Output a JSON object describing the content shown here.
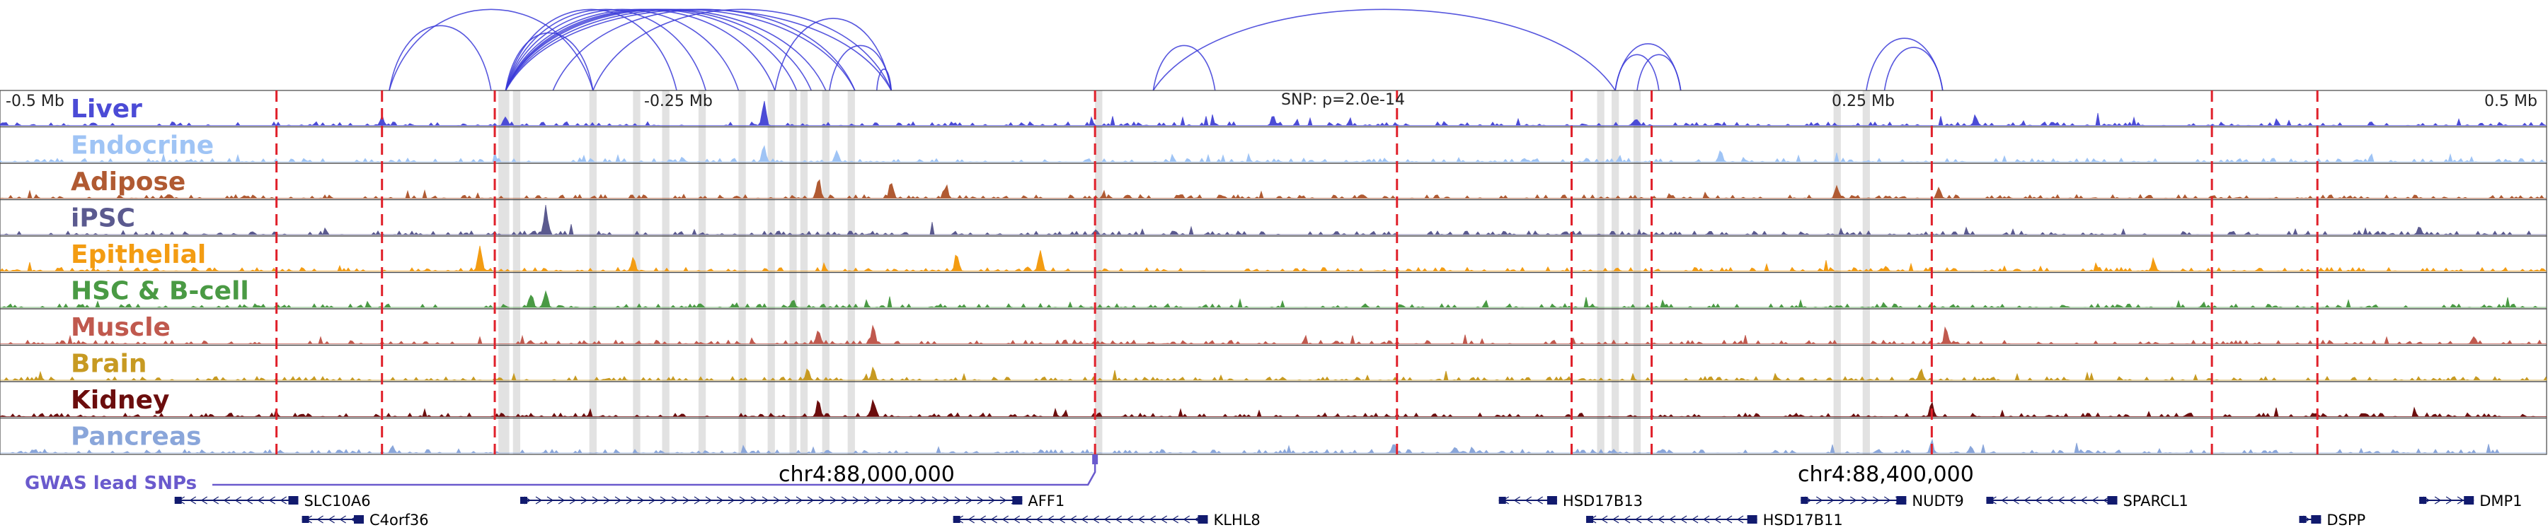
{
  "chart_data": {
    "type": "area",
    "title": "",
    "x_range": [
      87800000,
      88500000
    ],
    "ruler_labels": [
      "-0.5 Mb",
      "-0.25 Mb",
      "0.25 Mb",
      "0.5 Mb"
    ],
    "coordinate_labels": [
      "chr4:88,000,000",
      "chr4:88,400,000"
    ],
    "snp_annotation": "SNP: p=2.0e-14",
    "gwas_label": "GWAS lead SNPs",
    "tracks": [
      {
        "name": "Liver",
        "color": "#4b4bd6",
        "seed": 11,
        "peaks": [
          [
            87905000,
            0.35
          ],
          [
            87939000,
            0.4
          ],
          [
            88010000,
            0.9
          ],
          [
            88150000,
            0.35
          ],
          [
            88343000,
            0.4
          ],
          [
            88250000,
            0.3
          ]
        ]
      },
      {
        "name": "Endocrine",
        "color": "#9fc4f5",
        "seed": 23,
        "peaks": [
          [
            88010000,
            0.6
          ],
          [
            88030000,
            0.4
          ],
          [
            88273000,
            0.4
          ]
        ]
      },
      {
        "name": "Adipose",
        "color": "#b05a32",
        "seed": 37,
        "peaks": [
          [
            88025000,
            0.9
          ],
          [
            88045000,
            0.7
          ],
          [
            88060000,
            0.5
          ],
          [
            88305000,
            0.5
          ],
          [
            88333000,
            0.5
          ]
        ]
      },
      {
        "name": "iPSC",
        "color": "#5b5a8f",
        "seed": 41,
        "peaks": [
          [
            87950000,
            0.9
          ],
          [
            88465000,
            0.3
          ]
        ]
      },
      {
        "name": "Epithelial",
        "color": "#f39c12",
        "seed": 53,
        "peaks": [
          [
            87932000,
            1.0
          ],
          [
            87974000,
            0.6
          ],
          [
            88063000,
            0.8
          ],
          [
            88086000,
            0.8
          ],
          [
            88392000,
            0.45
          ]
        ]
      },
      {
        "name": "HSC & B-cell",
        "color": "#4a9a44",
        "seed": 61,
        "peaks": [
          [
            87950000,
            0.8
          ],
          [
            87946000,
            0.6
          ],
          [
            88018000,
            0.3
          ]
        ]
      },
      {
        "name": "Muscle",
        "color": "#c0594e",
        "seed": 71,
        "peaks": [
          [
            88025000,
            0.6
          ],
          [
            88040000,
            0.7
          ],
          [
            88335000,
            0.7
          ],
          [
            88480000,
            0.3
          ]
        ]
      },
      {
        "name": "Brain",
        "color": "#c79a22",
        "seed": 83,
        "peaks": [
          [
            88022000,
            0.5
          ],
          [
            88040000,
            0.5
          ],
          [
            88328000,
            0.5
          ]
        ]
      },
      {
        "name": "Kidney",
        "color": "#6b0d0d",
        "seed": 97,
        "peaks": [
          [
            88025000,
            0.6
          ],
          [
            88040000,
            0.6
          ],
          [
            88331000,
            0.5
          ]
        ]
      },
      {
        "name": "Pancreas",
        "color": "#8aa6da",
        "seed": 101,
        "peaks": [
          [
            88183000,
            0.3
          ],
          [
            88200000,
            0.3
          ],
          [
            88331000,
            0.4
          ]
        ]
      }
    ],
    "red_dashed_positions": [
      87876000,
      87905000,
      87936000,
      88101000,
      88184000,
      88232000,
      88254000,
      88331000,
      88408000,
      88437000
    ],
    "gray_bands": [
      [
        87937000,
        87940000
      ],
      [
        87941000,
        87943000
      ],
      [
        87962000,
        87964000
      ],
      [
        87974000,
        87976000
      ],
      [
        87982000,
        87984000
      ],
      [
        87992000,
        87994000
      ],
      [
        88003000,
        88005000
      ],
      [
        88011000,
        88013000
      ],
      [
        88017000,
        88019000
      ],
      [
        88020000,
        88022000
      ],
      [
        88026000,
        88028000
      ],
      [
        88033000,
        88035000
      ],
      [
        88101000,
        88103000
      ],
      [
        88239000,
        88241000
      ],
      [
        88243000,
        88245000
      ],
      [
        88249000,
        88251000
      ],
      [
        88304000,
        88306000
      ],
      [
        88312000,
        88314000
      ]
    ],
    "loops": [
      [
        87907000,
        87935000
      ],
      [
        87907000,
        87963000
      ],
      [
        87939000,
        87963000
      ],
      [
        87939000,
        87986000
      ],
      [
        87939000,
        87994000
      ],
      [
        87939000,
        88003000
      ],
      [
        87939000,
        88013000
      ],
      [
        87939000,
        88019000
      ],
      [
        87939000,
        88023000
      ],
      [
        87939000,
        88027000
      ],
      [
        87939000,
        88035000
      ],
      [
        87939000,
        88045000
      ],
      [
        87952000,
        88035000
      ],
      [
        87963000,
        88045000
      ],
      [
        88013000,
        88045000
      ],
      [
        88028000,
        88045000
      ],
      [
        88041000,
        88045000
      ],
      [
        88117000,
        88134000
      ],
      [
        88117000,
        88244000
      ],
      [
        88244000,
        88262000
      ],
      [
        88244000,
        88256000
      ],
      [
        88250000,
        88262000
      ],
      [
        88313000,
        88334000
      ],
      [
        88318000,
        88334000
      ]
    ],
    "genes": [
      {
        "name": "SLC10A6",
        "start": 87848000,
        "end": 87882000,
        "row": 0,
        "strand": "-"
      },
      {
        "name": "C4orf36",
        "start": 87883000,
        "end": 87900000,
        "row": 1,
        "strand": "-"
      },
      {
        "name": "AFF1",
        "start": 87943000,
        "end": 88081000,
        "row": 0,
        "strand": "+"
      },
      {
        "name": "KLHL8",
        "start": 88062000,
        "end": 88132000,
        "row": 1,
        "strand": "-"
      },
      {
        "name": "HSD17B13",
        "start": 88212000,
        "end": 88228000,
        "row": 0,
        "strand": "-"
      },
      {
        "name": "HSD17B11",
        "start": 88236000,
        "end": 88283000,
        "row": 1,
        "strand": "-"
      },
      {
        "name": "NUDT9",
        "start": 88295000,
        "end": 88324000,
        "row": 0,
        "strand": "+"
      },
      {
        "name": "SPARCL1",
        "start": 88346000,
        "end": 88382000,
        "row": 0,
        "strand": "-"
      },
      {
        "name": "DSPP",
        "start": 88432000,
        "end": 88438000,
        "row": 1,
        "strand": "+"
      },
      {
        "name": "DMP1",
        "start": 88465000,
        "end": 88480000,
        "row": 0,
        "strand": "+"
      }
    ],
    "gwas_snp_position": 88101000
  }
}
